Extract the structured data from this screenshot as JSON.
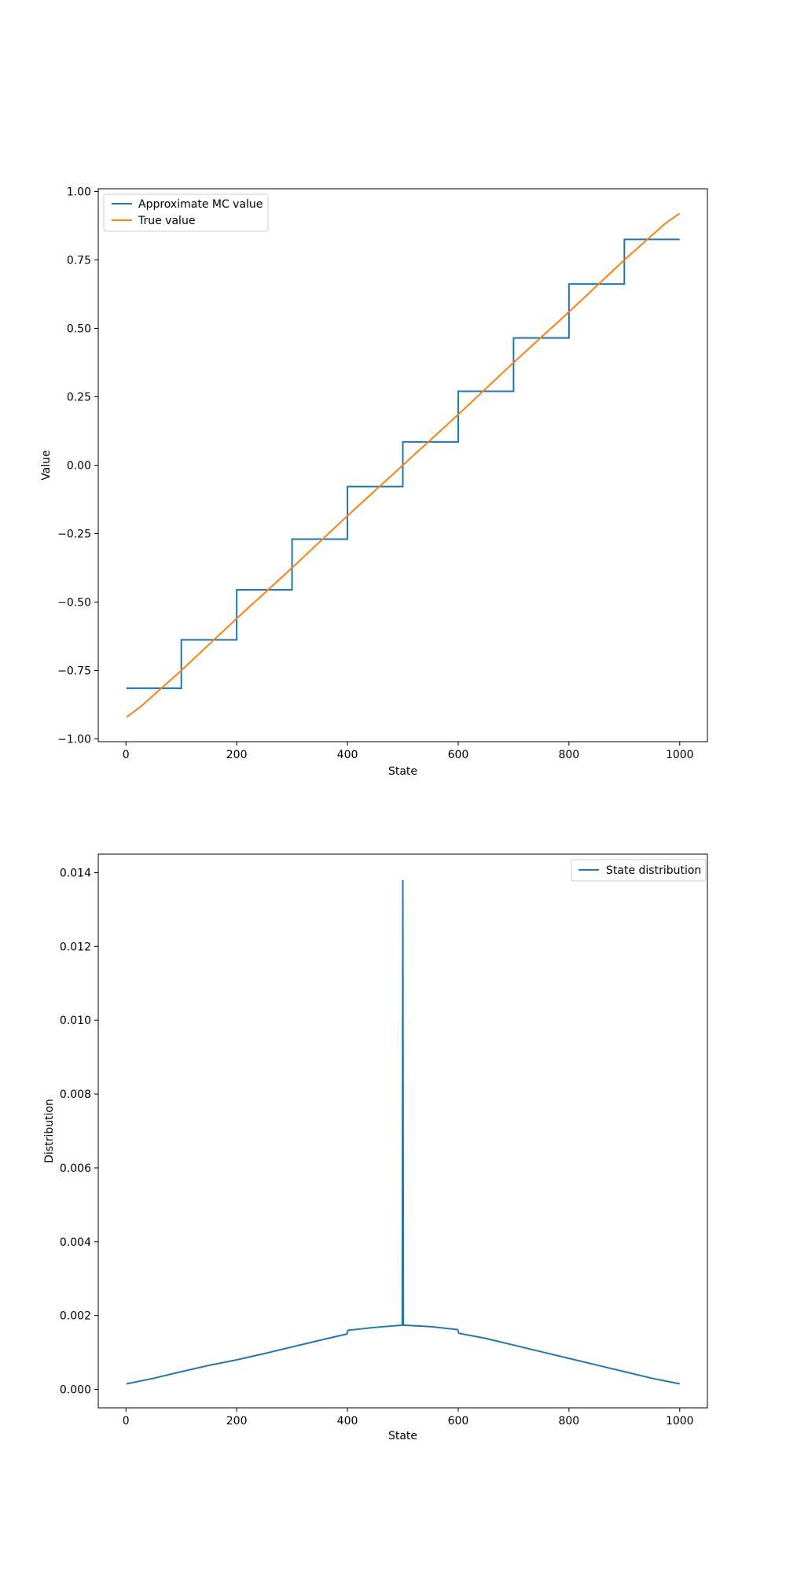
{
  "colors": {
    "blue": "#1f77b4",
    "orange": "#ff7f0e",
    "axes": "#000000",
    "legend_border": "#cccccc"
  },
  "chart_data": [
    {
      "type": "line",
      "title": "",
      "xlabel": "State",
      "ylabel": "Value",
      "xlim": [
        -50,
        1050
      ],
      "ylim": [
        -1.01,
        1.01
      ],
      "xticks": [
        0,
        200,
        400,
        600,
        800,
        1000
      ],
      "xtick_labels": [
        "0",
        "200",
        "400",
        "600",
        "800",
        "1000"
      ],
      "yticks": [
        -1.0,
        -0.75,
        -0.5,
        -0.25,
        0.0,
        0.25,
        0.5,
        0.75,
        1.0
      ],
      "ytick_labels": [
        "−1.00",
        "−0.75",
        "−0.50",
        "−0.25",
        "0.00",
        "0.25",
        "0.50",
        "0.75",
        "1.00"
      ],
      "legend_position": "upper left",
      "legend": [
        "Approximate MC value",
        "True value"
      ],
      "series": [
        {
          "name": "Approximate MC value",
          "color": "#1f77b4",
          "style": "step",
          "step_width": 100,
          "x_start": 1,
          "x_end": 1000,
          "values": [
            -0.815,
            -0.638,
            -0.455,
            -0.27,
            -0.078,
            0.085,
            0.27,
            0.465,
            0.662,
            0.825
          ]
        },
        {
          "name": "True value",
          "color": "#ff7f0e",
          "style": "line",
          "x": [
            1,
            25,
            50,
            75,
            100,
            150,
            200,
            300,
            400,
            500,
            600,
            700,
            800,
            850,
            900,
            925,
            950,
            975,
            1000
          ],
          "y": [
            -0.92,
            -0.885,
            -0.84,
            -0.795,
            -0.75,
            -0.655,
            -0.56,
            -0.375,
            -0.185,
            0.0,
            0.185,
            0.375,
            0.56,
            0.655,
            0.75,
            0.795,
            0.84,
            0.885,
            0.92
          ]
        }
      ]
    },
    {
      "type": "line",
      "title": "",
      "xlabel": "State",
      "ylabel": "Distribution",
      "xlim": [
        -50,
        1050
      ],
      "ylim": [
        -0.0005,
        0.0145
      ],
      "xticks": [
        0,
        200,
        400,
        600,
        800,
        1000
      ],
      "xtick_labels": [
        "0",
        "200",
        "400",
        "600",
        "800",
        "1000"
      ],
      "yticks": [
        0.0,
        0.002,
        0.004,
        0.006,
        0.008,
        0.01,
        0.012,
        0.014
      ],
      "ytick_labels": [
        "0.000",
        "0.002",
        "0.004",
        "0.006",
        "0.008",
        "0.010",
        "0.012",
        "0.014"
      ],
      "legend_position": "upper right",
      "legend": [
        "State distribution"
      ],
      "series": [
        {
          "name": "State distribution",
          "color": "#1f77b4",
          "style": "line",
          "x": [
            1,
            50,
            100,
            150,
            200,
            250,
            300,
            350,
            399,
            401,
            450,
            499,
            500,
            501,
            550,
            599,
            601,
            650,
            700,
            750,
            800,
            850,
            900,
            950,
            1000
          ],
          "y": [
            0.00015,
            0.0003,
            0.00048,
            0.00065,
            0.0008,
            0.00097,
            0.00115,
            0.00133,
            0.0015,
            0.0016,
            0.00168,
            0.00174,
            0.0138,
            0.00174,
            0.0017,
            0.00162,
            0.00152,
            0.00138,
            0.0012,
            0.00102,
            0.00084,
            0.00066,
            0.00048,
            0.0003,
            0.00015
          ]
        }
      ]
    }
  ]
}
